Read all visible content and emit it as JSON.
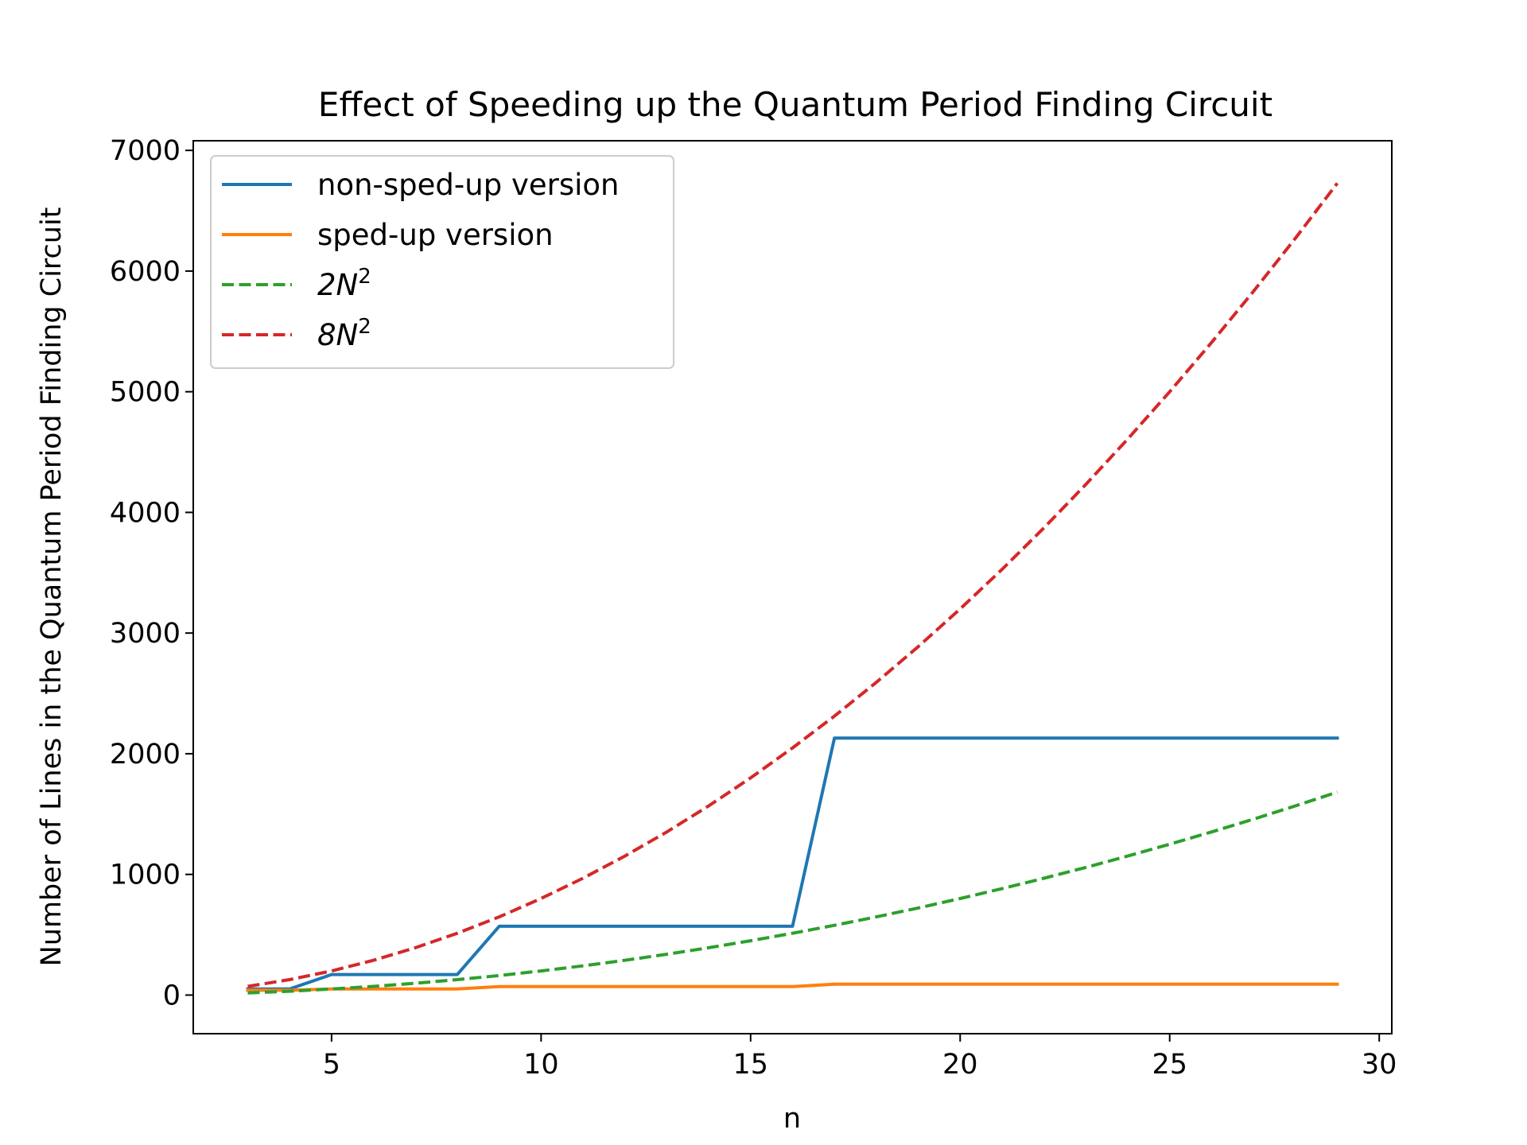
{
  "chart_data": {
    "type": "line",
    "title": "Effect of Speeding up the Quantum Period Finding Circuit",
    "xlabel": "n",
    "ylabel": "Number of Lines in the Quantum Period Finding Circuit",
    "xlim": [
      1.7,
      30.3
    ],
    "ylim": [
      -320,
      7080
    ],
    "xticks": [
      5,
      10,
      15,
      20,
      25,
      30
    ],
    "yticks": [
      0,
      1000,
      2000,
      3000,
      4000,
      5000,
      6000,
      7000
    ],
    "grid": false,
    "legend_position": "upper-left",
    "x": [
      3,
      4,
      5,
      6,
      7,
      8,
      9,
      10,
      11,
      12,
      13,
      14,
      15,
      16,
      17,
      18,
      19,
      20,
      21,
      22,
      23,
      24,
      25,
      26,
      27,
      28,
      29
    ],
    "series": [
      {
        "name": "non-sped-up version",
        "color": "#1f77b4",
        "style": "solid",
        "values": [
          50,
          50,
          170,
          170,
          170,
          170,
          570,
          570,
          570,
          570,
          570,
          570,
          570,
          570,
          2130,
          2130,
          2130,
          2130,
          2130,
          2130,
          2130,
          2130,
          2130,
          2130,
          2130,
          2130,
          2130
        ]
      },
      {
        "name": "sped-up version",
        "color": "#ff7f0e",
        "style": "solid",
        "values": [
          40,
          40,
          50,
          50,
          50,
          50,
          70,
          70,
          70,
          70,
          70,
          70,
          70,
          70,
          90,
          90,
          90,
          90,
          90,
          90,
          90,
          90,
          90,
          90,
          90,
          90,
          90
        ]
      },
      {
        "name_base": "2N",
        "name_sup": "2",
        "color": "#2ca02c",
        "style": "dashed",
        "values": [
          18,
          32,
          50,
          72,
          98,
          128,
          162,
          200,
          242,
          288,
          338,
          392,
          450,
          512,
          578,
          648,
          722,
          800,
          882,
          968,
          1058,
          1152,
          1250,
          1352,
          1458,
          1568,
          1682
        ]
      },
      {
        "name_base": "8N",
        "name_sup": "2",
        "color": "#d62728",
        "style": "dashed",
        "values": [
          72,
          128,
          200,
          288,
          392,
          512,
          648,
          800,
          968,
          1152,
          1352,
          1568,
          1800,
          2048,
          2312,
          2592,
          2888,
          3200,
          3528,
          3872,
          4232,
          4608,
          5000,
          5408,
          5832,
          6272,
          6728
        ]
      }
    ]
  }
}
